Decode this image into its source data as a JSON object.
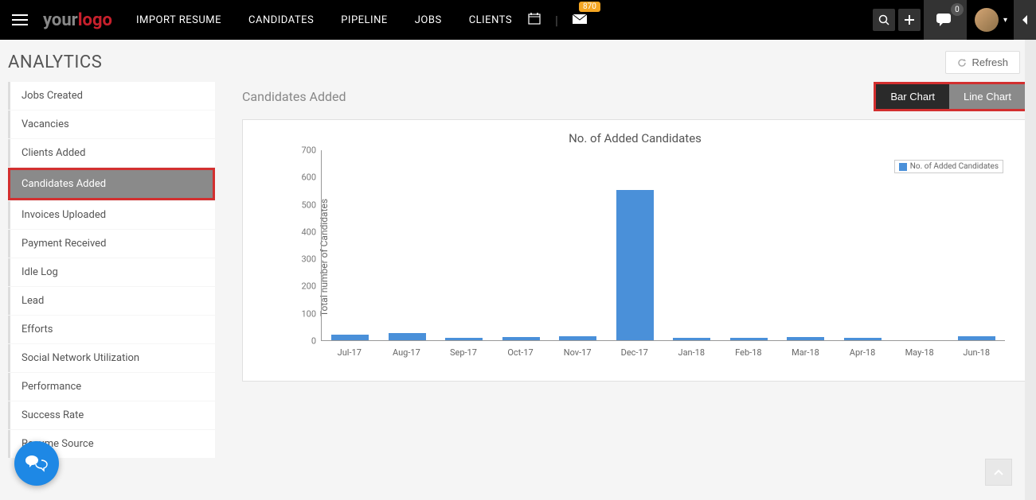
{
  "topbar": {
    "logo_part1": "your",
    "logo_part2": "logo",
    "nav": [
      "IMPORT RESUME",
      "CANDIDATES",
      "PIPELINE",
      "JOBS",
      "CLIENTS"
    ],
    "mail_badge": "870",
    "chat_badge": "0"
  },
  "page": {
    "title": "ANALYTICS",
    "refresh": "Refresh"
  },
  "sidebar": {
    "items": [
      "Jobs Created",
      "Vacancies",
      "Clients Added",
      "Candidates Added",
      "Invoices Uploaded",
      "Payment Received",
      "Idle Log",
      "Lead",
      "Efforts",
      "Social Network Utilization",
      "Performance",
      "Success Rate",
      "Resume Source"
    ],
    "active_index": 3
  },
  "content": {
    "section_title": "Candidates Added",
    "toggle": {
      "bar": "Bar Chart",
      "line": "Line Chart",
      "active": "bar"
    }
  },
  "chart": {
    "title": "No. of Added Candidates",
    "legend": "No. of Added Candidates",
    "y_axis_label": "Total number of Candidates",
    "y_ticks": [
      0,
      100,
      200,
      300,
      400,
      500,
      600,
      700
    ],
    "y_max": 700,
    "categories": [
      "Jul-17",
      "Aug-17",
      "Sep-17",
      "Oct-17",
      "Nov-17",
      "Dec-17",
      "Jan-18",
      "Feb-18",
      "Mar-18",
      "Apr-18",
      "May-18",
      "Jun-18"
    ],
    "values": [
      20,
      25,
      8,
      12,
      15,
      555,
      10,
      10,
      12,
      10,
      0,
      14
    ],
    "bar_color": "#4a90d9",
    "background": "#ffffff",
    "bar_width_pct": 5.5
  }
}
